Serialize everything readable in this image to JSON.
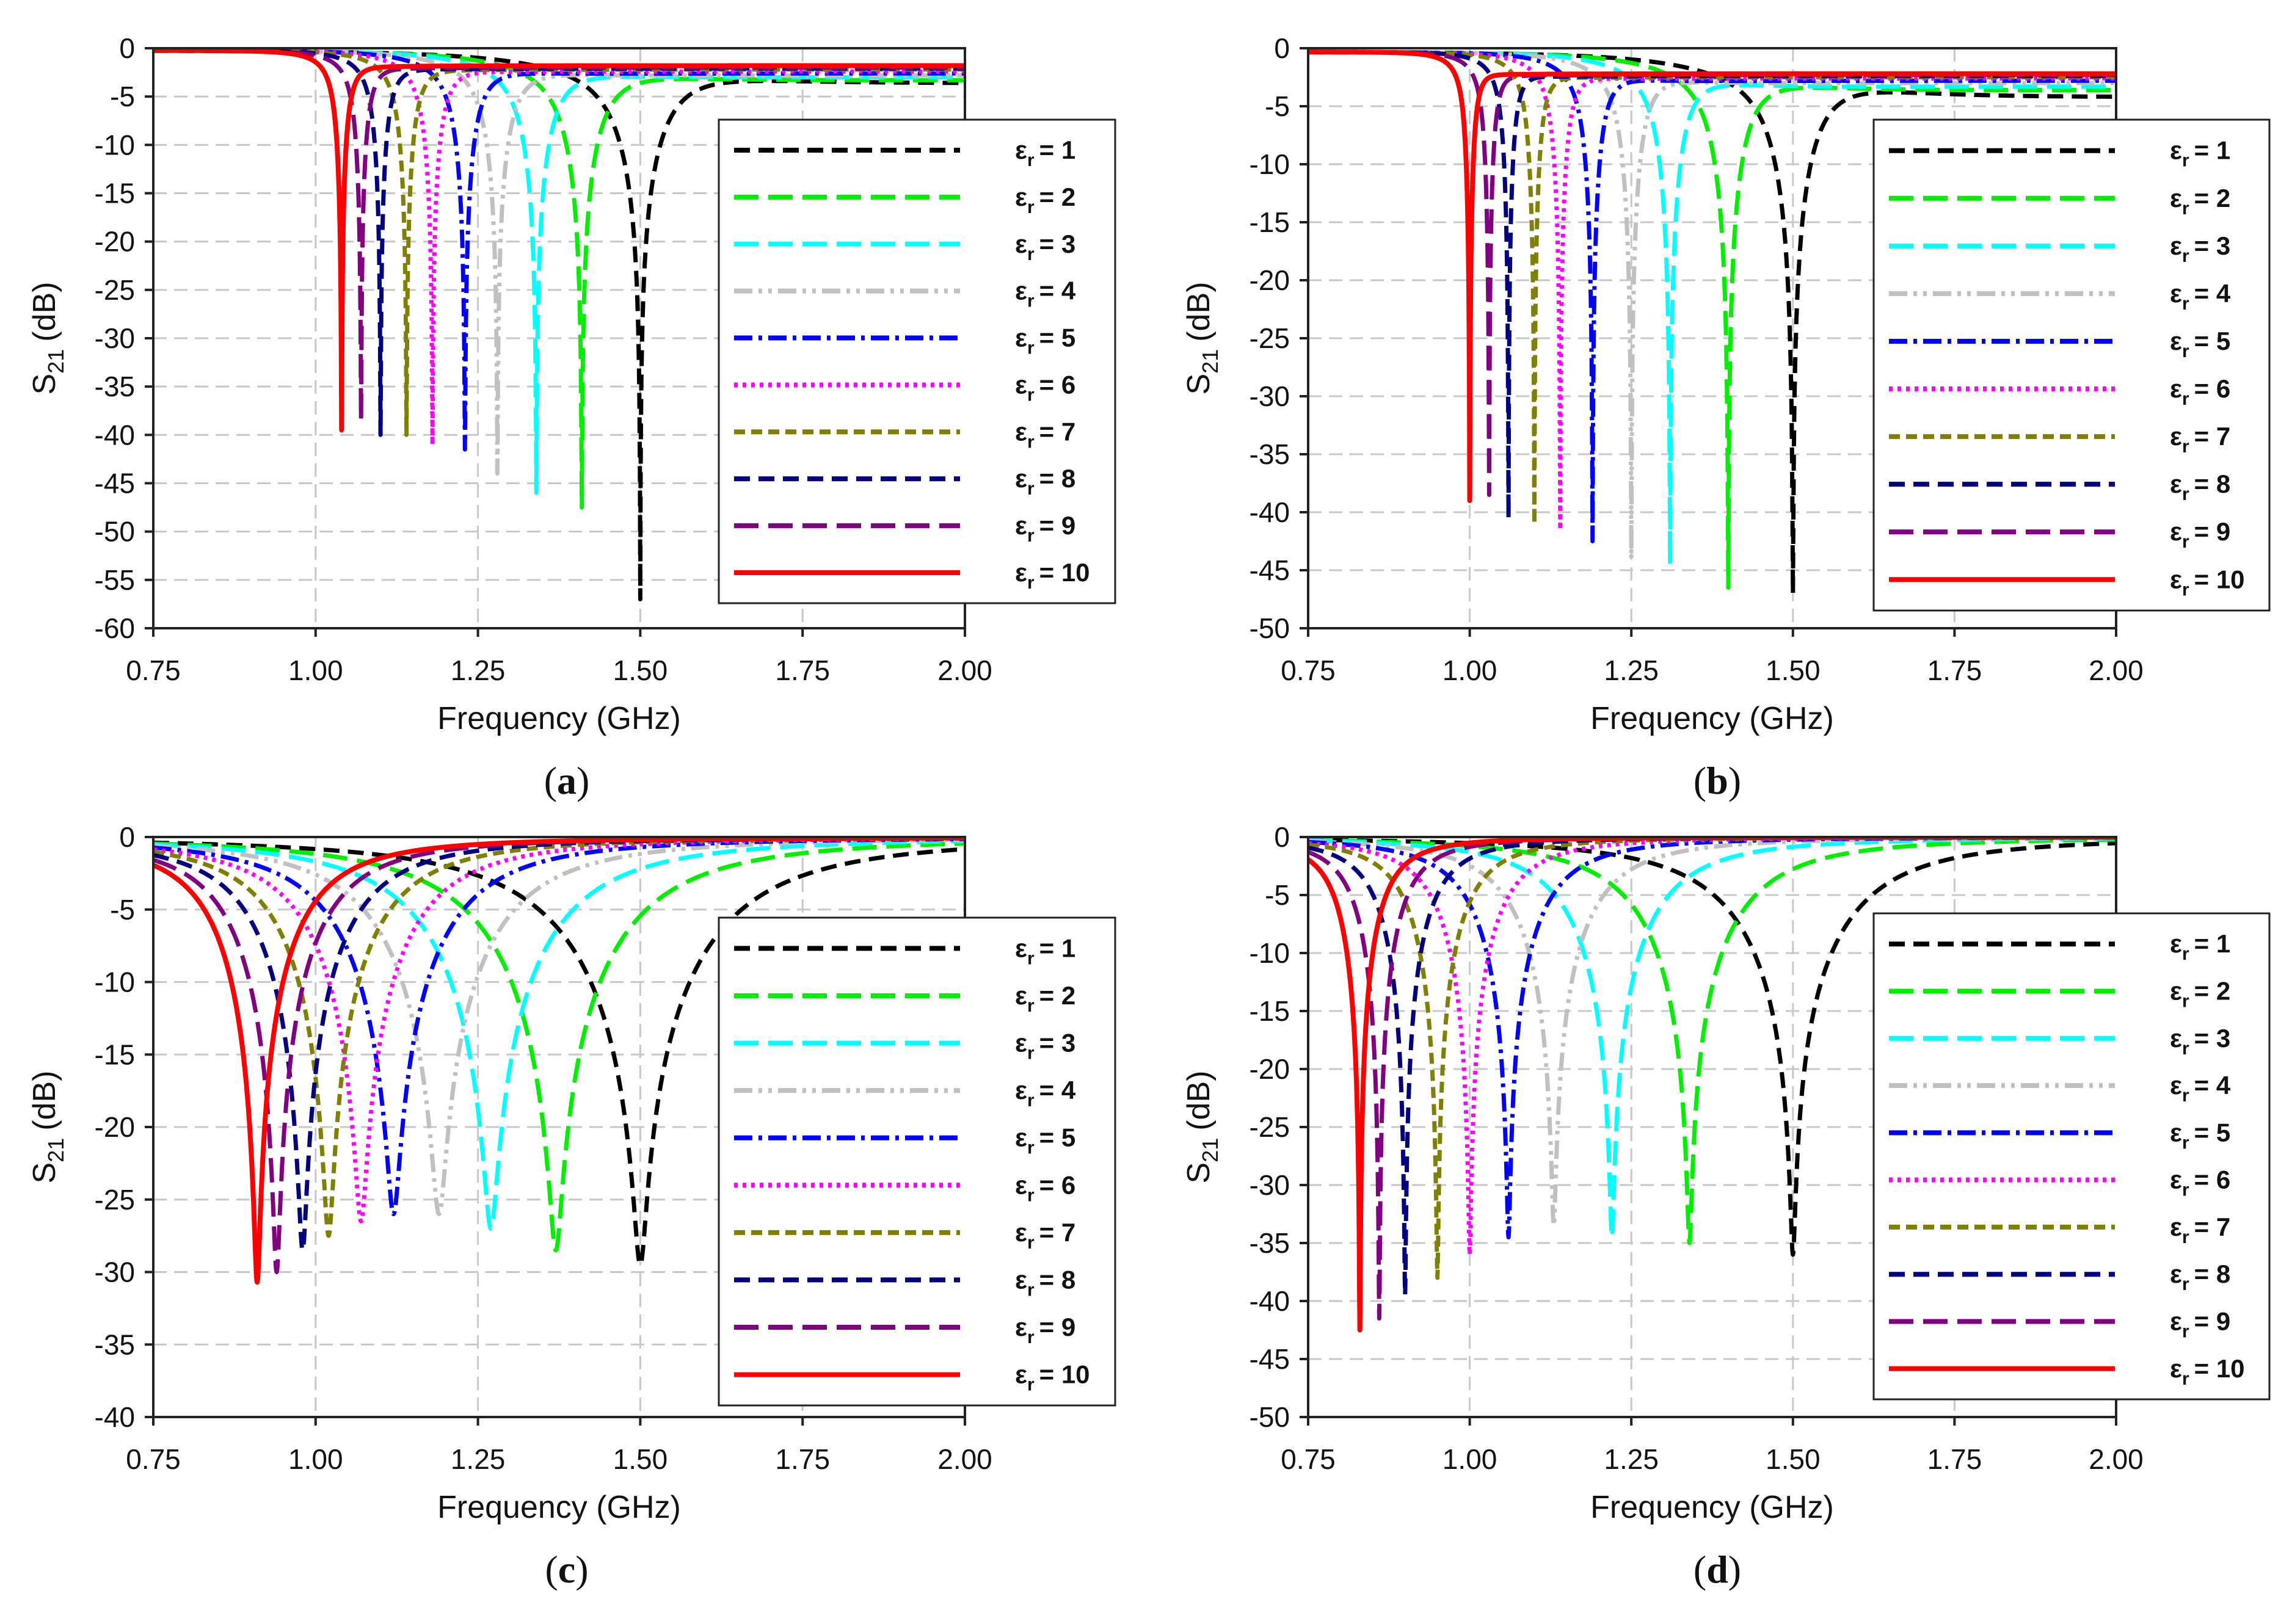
{
  "chart_data": [
    {
      "type": "line",
      "caption": "a",
      "xlabel": "Frequency (GHz)",
      "ylabel": {
        "main": "S",
        "sub": "21",
        "unit": "(dB)"
      },
      "xlim": [
        0.75,
        2.0
      ],
      "ylim": [
        -60,
        0
      ],
      "xticks": [
        "0.75",
        "1.00",
        "1.25",
        "1.50",
        "1.75",
        "2.00"
      ],
      "yticks": [
        0,
        -5,
        -10,
        -15,
        -20,
        -25,
        -30,
        -35,
        -40,
        -45,
        -50,
        -55,
        -60
      ],
      "grid": true,
      "legend_position": "right",
      "pre_level_db": -0.2,
      "resonance_ghz": [
        1.5,
        1.41,
        1.34,
        1.28,
        1.23,
        1.18,
        1.14,
        1.1,
        1.07,
        1.04
      ],
      "min_s21_db": [
        -57,
        -47.5,
        -46,
        -44,
        -41.5,
        -41,
        -40,
        -40,
        -38.5,
        -39.5
      ],
      "bandwidth_ghz": [
        0.09,
        0.07,
        0.057,
        0.048,
        0.041,
        0.034,
        0.03,
        0.026,
        0.023,
        0.021
      ],
      "post_level_db": [
        -3.6,
        -3.3,
        -3.0,
        -2.8,
        -2.6,
        -2.4,
        -2.2,
        -2.1,
        -2.0,
        -1.8
      ]
    },
    {
      "type": "line",
      "caption": "b",
      "xlabel": "Frequency (GHz)",
      "ylabel": {
        "main": "S",
        "sub": "21",
        "unit": "(dB)"
      },
      "xlim": [
        0.75,
        2.0
      ],
      "ylim": [
        -50,
        0
      ],
      "xticks": [
        "0.75",
        "1.00",
        "1.25",
        "1.50",
        "1.75",
        "2.00"
      ],
      "yticks": [
        0,
        -5,
        -10,
        -15,
        -20,
        -25,
        -30,
        -35,
        -40,
        -45,
        -50
      ],
      "grid": true,
      "legend_position": "right",
      "pre_level_db": -0.3,
      "resonance_ghz": [
        1.5,
        1.4,
        1.31,
        1.25,
        1.19,
        1.14,
        1.1,
        1.06,
        1.03,
        1.0
      ],
      "min_s21_db": [
        -47,
        -46.5,
        -44.5,
        -44,
        -42.5,
        -41.5,
        -41,
        -40.5,
        -38.5,
        -39
      ],
      "bandwidth_ghz": [
        0.08,
        0.061,
        0.047,
        0.039,
        0.032,
        0.027,
        0.023,
        0.02,
        0.018,
        0.016
      ],
      "post_level_db": [
        -4.2,
        -3.6,
        -3.3,
        -3.0,
        -2.8,
        -2.6,
        -2.5,
        -2.4,
        -2.3,
        -2.2
      ]
    },
    {
      "type": "line",
      "caption": "c",
      "xlabel": "Frequency (GHz)",
      "ylabel": {
        "main": "S",
        "sub": "21",
        "unit": "(dB)"
      },
      "xlim": [
        0.75,
        2.0
      ],
      "ylim": [
        -40,
        0
      ],
      "xticks": [
        "0.75",
        "1.00",
        "1.25",
        "1.50",
        "1.75",
        "2.00"
      ],
      "yticks": [
        0,
        -5,
        -10,
        -15,
        -20,
        -25,
        -30,
        -35,
        -40
      ],
      "grid": true,
      "legend_position": "right",
      "pre_level_db": 0,
      "resonance_ghz": [
        1.5,
        1.37,
        1.27,
        1.19,
        1.12,
        1.07,
        1.02,
        0.98,
        0.94,
        0.91
      ],
      "min_s21_db": [
        -29.5,
        -28.5,
        -27,
        -26,
        -26,
        -26.5,
        -27.5,
        -28.5,
        -30,
        -30.7
      ],
      "bandwidth_ghz": [
        0.23,
        0.206,
        0.187,
        0.172,
        0.159,
        0.15,
        0.14,
        0.133,
        0.126,
        0.12
      ],
      "post_level_db": [
        0,
        0,
        0,
        0,
        0,
        0,
        0,
        0,
        0,
        0
      ]
    },
    {
      "type": "line",
      "caption": "d",
      "xlabel": "Frequency (GHz)",
      "ylabel": {
        "main": "S",
        "sub": "21",
        "unit": "(dB)"
      },
      "xlim": [
        0.75,
        2.0
      ],
      "ylim": [
        -50,
        0
      ],
      "xticks": [
        "0.75",
        "1.00",
        "1.25",
        "1.50",
        "1.75",
        "2.00"
      ],
      "yticks": [
        0,
        -5,
        -10,
        -15,
        -20,
        -25,
        -30,
        -35,
        -40,
        -45,
        -50
      ],
      "grid": true,
      "legend_position": "right",
      "pre_level_db": 0,
      "resonance_ghz": [
        1.5,
        1.34,
        1.22,
        1.13,
        1.06,
        1.0,
        0.95,
        0.9,
        0.86,
        0.83
      ],
      "min_s21_db": [
        -36,
        -35,
        -34.5,
        -33.5,
        -34.5,
        -36,
        -38,
        -39.5,
        -41.5,
        -42.5
      ],
      "bandwidth_ghz": [
        0.18,
        0.151,
        0.13,
        0.114,
        0.101,
        0.09,
        0.081,
        0.073,
        0.065,
        0.06
      ],
      "post_level_db": [
        0,
        0,
        0,
        0,
        0,
        0,
        0,
        0,
        0,
        0
      ]
    }
  ],
  "series": [
    {
      "sym": "ε",
      "sub": "r",
      "eq": "= 1",
      "color": "#000000",
      "style": "dash"
    },
    {
      "sym": "ε",
      "sub": "r",
      "eq": "= 2",
      "color": "#00ee00",
      "style": "longdash"
    },
    {
      "sym": "ε",
      "sub": "r",
      "eq": "= 3",
      "color": "#00ffff",
      "style": "longdash"
    },
    {
      "sym": "ε",
      "sub": "r",
      "eq": "= 4",
      "color": "#c0c0c0",
      "style": "dashdotdot"
    },
    {
      "sym": "ε",
      "sub": "r",
      "eq": "= 5",
      "color": "#0000ff",
      "style": "dashdot"
    },
    {
      "sym": "ε",
      "sub": "r",
      "eq": "= 6",
      "color": "#ff00ff",
      "style": "dot"
    },
    {
      "sym": "ε",
      "sub": "r",
      "eq": "= 7",
      "color": "#808000",
      "style": "shortdash"
    },
    {
      "sym": "ε",
      "sub": "r",
      "eq": "= 8",
      "color": "#000080",
      "style": "dash"
    },
    {
      "sym": "ε",
      "sub": "r",
      "eq": "= 9",
      "color": "#800080",
      "style": "longdash"
    },
    {
      "sym": "ε",
      "sub": "r",
      "eq": "= 10",
      "color": "#ff0000",
      "style": "solid"
    }
  ]
}
